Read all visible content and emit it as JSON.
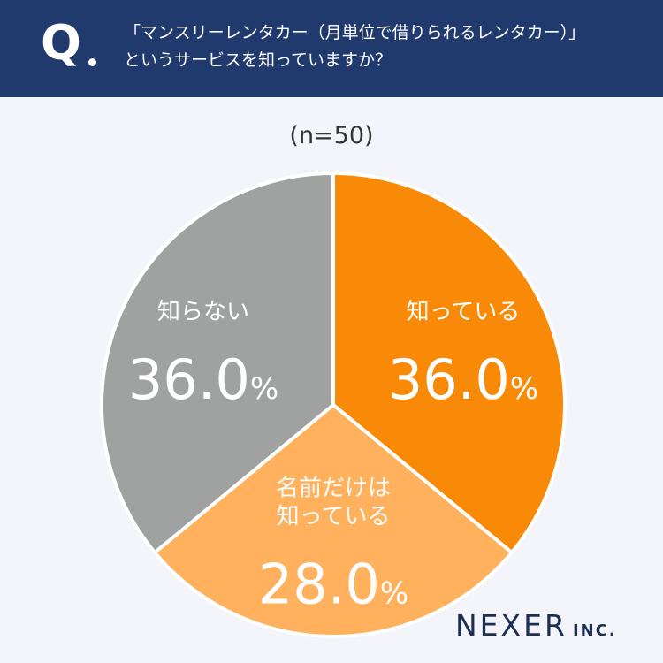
{
  "header": {
    "q_mark": "Q",
    "question_line1": "「マンスリーレンタカー（月単位で借りられるレンタカー）」",
    "question_line2": "というサービスを知っていますか？"
  },
  "sample_label": "(n=50)",
  "brand": {
    "name": "NEXER",
    "suffix": "INC."
  },
  "colors": {
    "header_bg": "#213a6e",
    "background": "#f3f5fb",
    "know": "#f98a08",
    "name_only": "#ffb15e",
    "dont_know": "#a0a1a1",
    "brand": "#1d2e55"
  },
  "chart_data": {
    "type": "pie",
    "title": "",
    "n": 50,
    "start": "12 o'clock, clockwise",
    "slices": [
      {
        "label_lines": [
          "知っている"
        ],
        "value": 36.0,
        "value_text": "36.0",
        "unit": "%",
        "color": "#f98a08"
      },
      {
        "label_lines": [
          "名前だけは",
          "知っている"
        ],
        "value": 28.0,
        "value_text": "28.0",
        "unit": "%",
        "color": "#ffb15e"
      },
      {
        "label_lines": [
          "知らない"
        ],
        "value": 36.0,
        "value_text": "36.0",
        "unit": "%",
        "color": "#a0a1a1"
      }
    ]
  }
}
